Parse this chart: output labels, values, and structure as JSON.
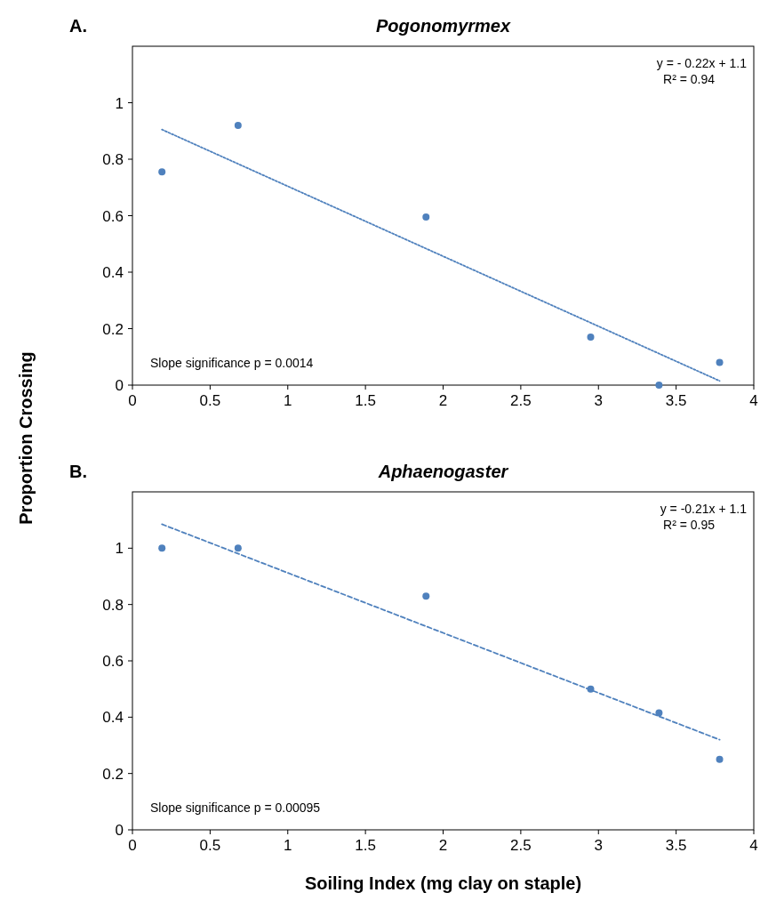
{
  "chart_data": [
    {
      "type": "scatter",
      "title": "Pogonomyrmex",
      "ylabel": "Proportion Crossing",
      "xlim": [
        0,
        4
      ],
      "xticks": [
        0,
        0.5,
        1,
        1.5,
        2,
        2.5,
        3,
        3.5,
        4
      ],
      "ylim": [
        0,
        1.2
      ],
      "yticks": [
        0,
        0.2,
        0.4,
        0.6,
        0.8,
        1
      ],
      "grid": false,
      "annotations": [
        "A.",
        "y = - 0.22x + 1.1",
        "R² = 0.94",
        "Slope significance p = 0.0014"
      ],
      "series": [
        {
          "type": "scatter",
          "color": "#4f81bd",
          "marker": "circle",
          "x": [
            0.19,
            0.68,
            1.89,
            2.95,
            3.39,
            3.78
          ],
          "values": [
            0.755,
            0.92,
            0.595,
            0.17,
            0.0,
            0.08
          ]
        },
        {
          "type": "line",
          "color": "#4f81bd",
          "marker": "none",
          "line_style": "dotted",
          "x": [
            0.19,
            3.78
          ],
          "values": [
            0.905,
            0.015
          ]
        }
      ]
    },
    {
      "type": "scatter",
      "title": "Aphaenogaster",
      "xlabel": "Soiling Index (mg clay on staple)",
      "xlim": [
        0,
        4
      ],
      "xticks": [
        0,
        0.5,
        1,
        1.5,
        2,
        2.5,
        3,
        3.5,
        4
      ],
      "ylim": [
        0,
        1.2
      ],
      "yticks": [
        0,
        0.2,
        0.4,
        0.6,
        0.8,
        1
      ],
      "grid": false,
      "annotations": [
        "B.",
        "y = -0.21x + 1.1",
        "R² = 0.95",
        "Slope significance p = 0.00095"
      ],
      "series": [
        {
          "type": "scatter",
          "color": "#4f81bd",
          "marker": "circle",
          "x": [
            0.19,
            0.68,
            1.89,
            2.95,
            3.39,
            3.78
          ],
          "values": [
            1.0,
            1.0,
            0.83,
            0.5,
            0.415,
            0.25
          ]
        },
        {
          "type": "line",
          "color": "#4f81bd",
          "marker": "none",
          "line_style": "dashed",
          "x": [
            0.19,
            3.78
          ],
          "values": [
            1.085,
            0.32
          ]
        }
      ]
    }
  ]
}
